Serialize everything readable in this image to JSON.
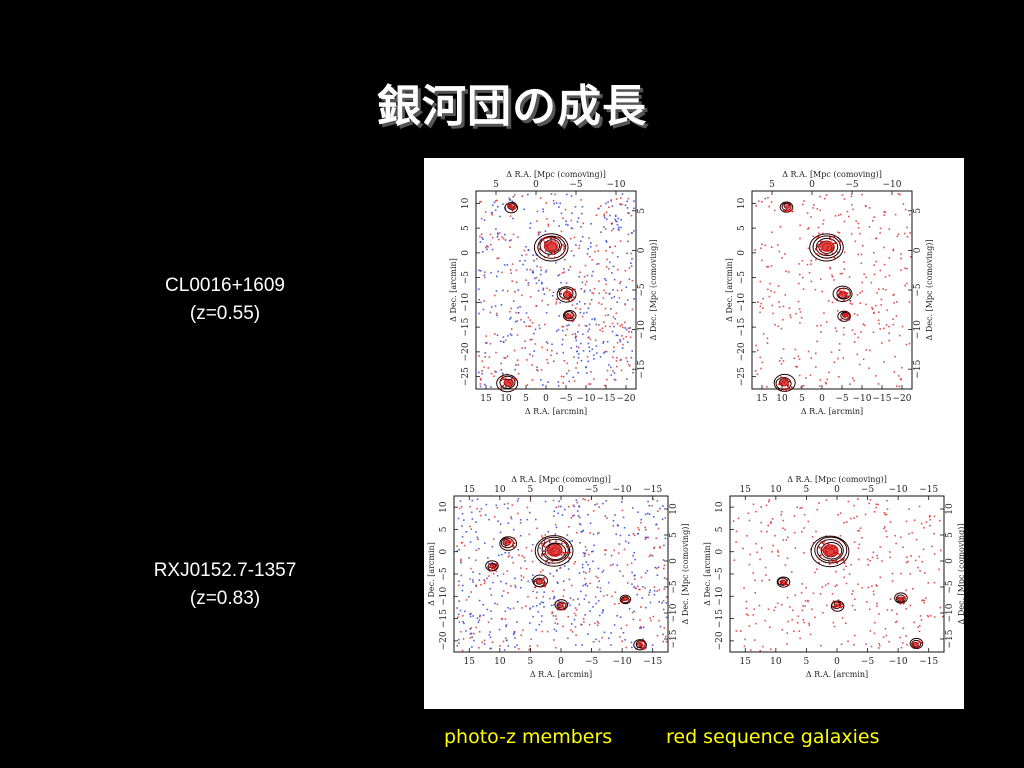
{
  "slide": {
    "title": "銀河団の成長",
    "clusters": [
      {
        "name": "CL0016+1609",
        "redshift": "(z=0.55)"
      },
      {
        "name": "RXJ0152.7-1357",
        "redshift": "(z=0.83)"
      }
    ],
    "captions": {
      "left": "photo-z members",
      "right": "red sequence galaxies"
    },
    "colors": {
      "background": "#000000",
      "title": "#ffffff",
      "caption": "#ffff00",
      "photoz_points_blue": "#3344dd",
      "photoz_points_red": "#dd3333",
      "contour": "#220000"
    }
  },
  "panels": {
    "top_axis_label": "Δ R.A. [Mpc (comoving)]",
    "bottom_axis_label": "Δ R.A. [arcmin]",
    "left_axis_label": "Δ Dec. [arcmin]",
    "right_axis_label": "Δ Dec. [Mpc (comoving)]",
    "row1": {
      "bottom_ticks": [
        "15",
        "10",
        "5",
        "0",
        "−5",
        "−10",
        "−15",
        "−20"
      ],
      "top_ticks": [
        "5",
        "0",
        "−5",
        "−10"
      ],
      "left_ticks": [
        "10",
        "5",
        "0",
        "−5",
        "−10",
        "−15",
        "−20",
        "−25"
      ],
      "right_ticks": [
        "5",
        "0",
        "−5",
        "−10",
        "−15"
      ]
    },
    "row2": {
      "bottom_ticks": [
        "15",
        "10",
        "5",
        "0",
        "−5",
        "−10",
        "−15"
      ],
      "top_ticks": [
        "15",
        "10",
        "5",
        "0",
        "−5",
        "−10",
        "−15"
      ],
      "left_ticks": [
        "10",
        "5",
        "0",
        "−5",
        "−10",
        "−15",
        "−20"
      ],
      "right_ticks": [
        "10",
        "5",
        "0",
        "−5",
        "−10",
        "−15"
      ]
    }
  }
}
